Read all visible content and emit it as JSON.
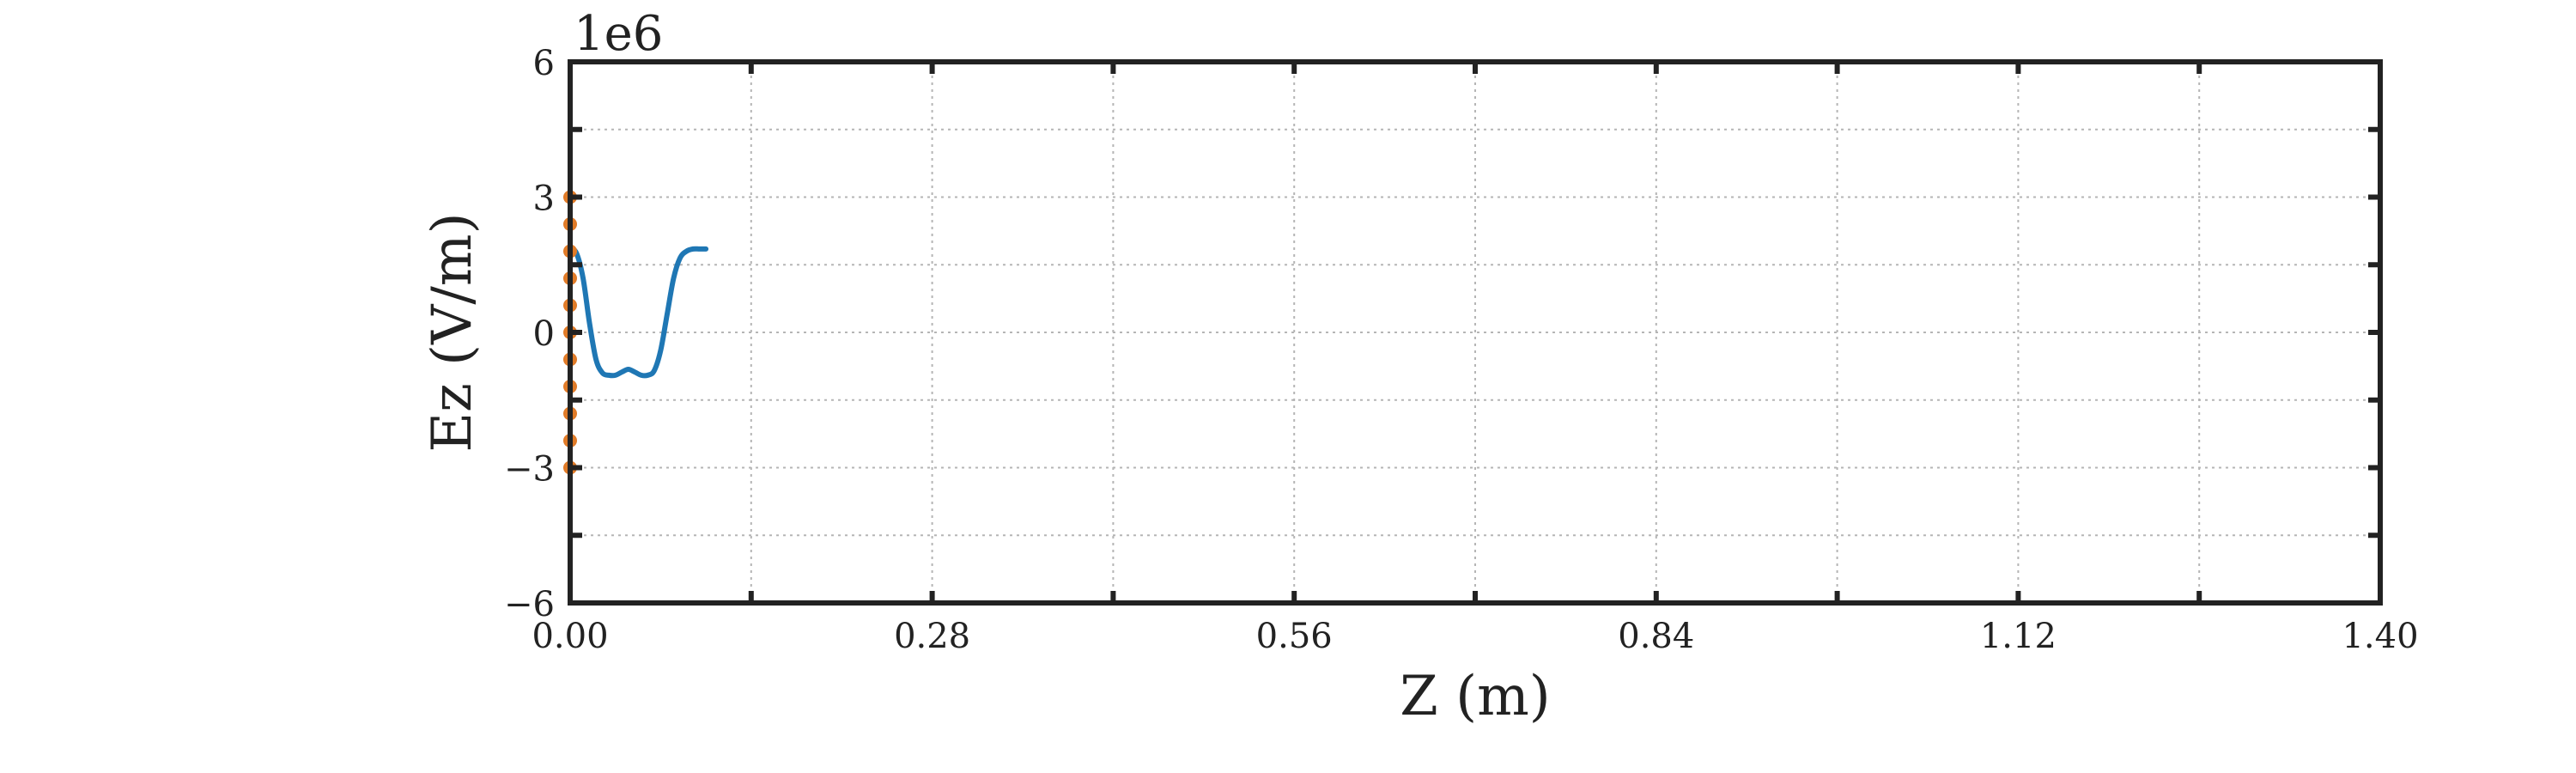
{
  "chart_data": {
    "type": "line",
    "title": "",
    "xlabel": "Z (m)",
    "ylabel": "Ez (V/m)",
    "y_offset_label": "1e6",
    "xlim": [
      0,
      1.4
    ],
    "ylim": [
      -6,
      6
    ],
    "x_ticks": [
      0.0,
      0.14,
      0.28,
      0.42,
      0.56,
      0.7,
      0.84,
      0.98,
      1.12,
      1.26,
      1.4
    ],
    "x_tick_labels": [
      "0.00",
      "",
      "0.28",
      "",
      "0.56",
      "",
      "0.84",
      "",
      "1.12",
      "",
      "1.40"
    ],
    "y_ticks": [
      -6,
      -4.5,
      -3,
      -1.5,
      0,
      1.5,
      3,
      4.5,
      6
    ],
    "y_tick_labels": [
      "−6",
      "",
      "−3",
      "",
      "0",
      "",
      "3",
      "",
      "6"
    ],
    "grid": true,
    "series": [
      {
        "type": "line",
        "color": "#1f77b4",
        "x": [
          0.0,
          0.005,
          0.01,
          0.015,
          0.02,
          0.025,
          0.03,
          0.035,
          0.04,
          0.045,
          0.05,
          0.055,
          0.06,
          0.065,
          0.07,
          0.075,
          0.08,
          0.085,
          0.09,
          0.095,
          0.1,
          0.105
        ],
        "y": [
          1.9,
          1.75,
          1.2,
          0.2,
          -0.6,
          -0.9,
          -0.95,
          -0.95,
          -0.88,
          -0.82,
          -0.88,
          -0.95,
          -0.95,
          -0.85,
          -0.4,
          0.4,
          1.2,
          1.65,
          1.8,
          1.85,
          1.85,
          1.85
        ]
      },
      {
        "type": "scatter",
        "color": "#e07b28",
        "x": [
          0.0,
          0.0,
          0.0,
          0.0,
          0.0,
          0.0,
          0.0,
          0.0,
          0.0,
          0.0,
          0.0
        ],
        "y": [
          3.0,
          2.4,
          1.8,
          1.2,
          0.6,
          0.0,
          -0.6,
          -1.2,
          -1.8,
          -2.4,
          -3.0
        ]
      }
    ]
  }
}
